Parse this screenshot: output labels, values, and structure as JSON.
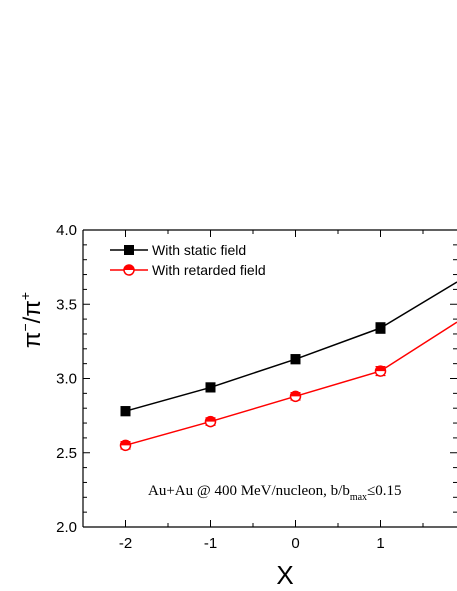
{
  "chart_data": {
    "type": "line",
    "xlabel": "X",
    "ylabel": {
      "base": "π",
      "sup1": "−",
      "mid": "/π",
      "sup2": "+"
    },
    "x_ticks": [
      "-2",
      "-1",
      "0",
      "1"
    ],
    "y_ticks": [
      "2.0",
      "2.5",
      "3.0",
      "3.5",
      "4.0"
    ],
    "xlim": [
      -2.5,
      1.9
    ],
    "ylim": [
      2.0,
      4.0
    ],
    "grid": false,
    "legend_position": "top-left",
    "annotation": {
      "main": "Au+Au @ 400 MeV/nucleon, b/b",
      "sub": "max",
      "tail": "≤0.15"
    },
    "series": [
      {
        "name": "With static field",
        "color": "#000000",
        "marker": "square",
        "x": [
          -2,
          -1,
          0,
          1
        ],
        "y": [
          2.78,
          2.94,
          3.13,
          3.34
        ],
        "err": [
          0.03,
          0.03,
          0.03,
          0.035
        ],
        "line_extension_to": {
          "x": 1.9,
          "y": 3.65
        }
      },
      {
        "name": "With retarded field",
        "color": "#ff0000",
        "marker": "half-filled-circle",
        "x": [
          -2,
          -1,
          0,
          1
        ],
        "y": [
          2.55,
          2.71,
          2.88,
          3.05
        ],
        "err": [
          0.025,
          0.025,
          0.025,
          0.03
        ],
        "line_extension_to": {
          "x": 1.9,
          "y": 3.38
        }
      }
    ]
  }
}
